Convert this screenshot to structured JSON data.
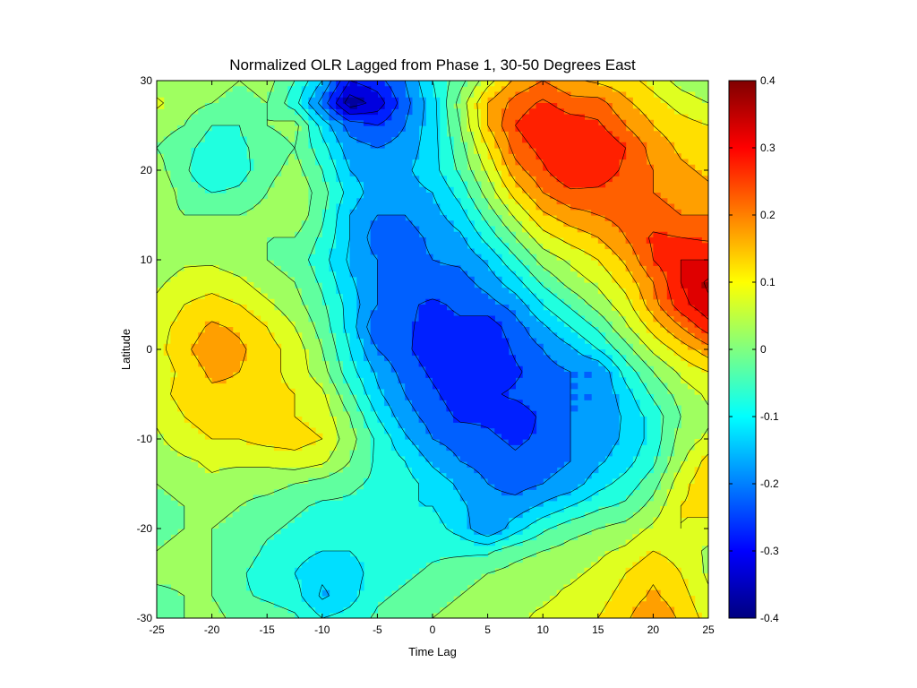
{
  "chart_data": {
    "type": "heatmap",
    "title": "Normalized OLR Lagged from Phase 1, 30-50 Degrees East",
    "xlabel": "Time Lag",
    "ylabel": "Latitude",
    "xlim": [
      -25,
      25
    ],
    "ylim": [
      -30,
      30
    ],
    "x_ticks": [
      -25,
      -20,
      -15,
      -10,
      -5,
      0,
      5,
      10,
      15,
      20,
      25
    ],
    "y_ticks": [
      -30,
      -20,
      -10,
      0,
      10,
      20,
      30
    ],
    "colorbar": {
      "colormap": "jet",
      "range": [
        -0.4,
        0.4
      ],
      "ticks": [
        -0.4,
        -0.3,
        -0.2,
        -0.1,
        0,
        0.1,
        0.2,
        0.3,
        0.4
      ]
    },
    "contour_interval": 0.05,
    "x": [
      -25,
      -22.5,
      -20,
      -17.5,
      -15,
      -12.5,
      -10,
      -7.5,
      -5,
      -2.5,
      0,
      2.5,
      5,
      7.5,
      10,
      12.5,
      15,
      17.5,
      20,
      22.5,
      25
    ],
    "y": [
      30,
      27.5,
      25,
      22.5,
      20,
      17.5,
      15,
      12.5,
      10,
      7.5,
      5,
      2.5,
      0,
      -2.5,
      -5,
      -7.5,
      -10,
      -12.5,
      -15,
      -17.5,
      -20,
      -22.5,
      -25,
      -27.5,
      -30
    ],
    "z": [
      [
        0.02,
        0.04,
        0.02,
        0.0,
        0.02,
        -0.05,
        -0.15,
        -0.3,
        -0.27,
        -0.2,
        -0.1,
        -0.02,
        0.08,
        0.16,
        0.2,
        0.16,
        0.14,
        0.12,
        0.08,
        0.03,
        0.0
      ],
      [
        0.06,
        0.02,
        0.0,
        -0.02,
        0.0,
        -0.08,
        -0.22,
        -0.38,
        -0.33,
        -0.22,
        -0.12,
        0.02,
        0.15,
        0.22,
        0.26,
        0.22,
        0.22,
        0.16,
        0.12,
        0.08,
        0.05
      ],
      [
        0.02,
        0.0,
        -0.05,
        -0.05,
        0.0,
        0.02,
        -0.12,
        -0.22,
        -0.25,
        -0.2,
        -0.12,
        0.0,
        0.15,
        0.25,
        0.3,
        0.28,
        0.26,
        0.2,
        0.15,
        0.12,
        0.1
      ],
      [
        0.0,
        -0.03,
        -0.08,
        -0.06,
        -0.03,
        0.0,
        -0.08,
        -0.18,
        -0.2,
        -0.18,
        -0.12,
        -0.02,
        0.1,
        0.22,
        0.27,
        0.28,
        0.3,
        0.25,
        0.18,
        0.14,
        0.12
      ],
      [
        0.02,
        -0.04,
        -0.1,
        -0.07,
        -0.02,
        0.02,
        -0.05,
        -0.15,
        -0.18,
        -0.16,
        -0.12,
        -0.04,
        0.06,
        0.18,
        0.24,
        0.3,
        0.28,
        0.24,
        0.2,
        0.16,
        0.14
      ],
      [
        0.04,
        -0.02,
        -0.05,
        -0.04,
        0.0,
        0.05,
        -0.03,
        -0.12,
        -0.18,
        -0.17,
        -0.15,
        -0.08,
        0.02,
        0.12,
        0.2,
        0.24,
        0.24,
        0.22,
        0.2,
        0.18,
        0.16
      ],
      [
        0.02,
        0.0,
        0.0,
        0.0,
        0.02,
        0.04,
        -0.04,
        -0.15,
        -0.2,
        -0.2,
        -0.17,
        -0.12,
        -0.03,
        0.06,
        0.14,
        0.18,
        0.2,
        0.22,
        0.22,
        0.2,
        0.2
      ],
      [
        0.0,
        0.0,
        0.02,
        0.02,
        0.0,
        0.0,
        -0.06,
        -0.15,
        -0.23,
        -0.22,
        -0.19,
        -0.16,
        -0.08,
        0.0,
        0.08,
        0.12,
        0.15,
        0.2,
        0.26,
        0.25,
        0.24
      ],
      [
        0.02,
        0.04,
        0.04,
        0.02,
        0.0,
        -0.02,
        -0.08,
        -0.16,
        -0.2,
        -0.22,
        -0.2,
        -0.19,
        -0.14,
        -0.06,
        0.02,
        0.06,
        0.1,
        0.16,
        0.25,
        0.3,
        0.3
      ],
      [
        0.04,
        0.07,
        0.08,
        0.06,
        0.02,
        0.0,
        -0.06,
        -0.14,
        -0.2,
        -0.22,
        -0.22,
        -0.22,
        -0.18,
        -0.12,
        -0.04,
        0.02,
        0.06,
        0.12,
        0.2,
        0.3,
        0.36
      ],
      [
        0.06,
        0.1,
        0.12,
        0.1,
        0.06,
        0.02,
        -0.04,
        -0.12,
        -0.2,
        -0.24,
        -0.26,
        -0.24,
        -0.22,
        -0.18,
        -0.1,
        -0.04,
        0.02,
        0.08,
        0.18,
        0.28,
        0.34
      ],
      [
        0.08,
        0.12,
        0.16,
        0.14,
        0.1,
        0.05,
        -0.02,
        -0.12,
        -0.25,
        -0.24,
        -0.27,
        -0.26,
        -0.28,
        -0.22,
        -0.16,
        -0.1,
        -0.04,
        0.04,
        0.12,
        0.2,
        0.28
      ],
      [
        0.08,
        0.14,
        0.18,
        0.16,
        0.12,
        0.08,
        0.0,
        -0.1,
        -0.2,
        -0.24,
        -0.28,
        -0.28,
        -0.3,
        -0.24,
        -0.2,
        -0.16,
        -0.1,
        -0.02,
        0.06,
        0.12,
        0.18
      ],
      [
        0.06,
        0.12,
        0.16,
        0.15,
        0.12,
        0.08,
        0.02,
        -0.08,
        -0.16,
        -0.22,
        -0.26,
        -0.28,
        -0.3,
        -0.26,
        -0.22,
        -0.2,
        -0.2,
        -0.08,
        0.0,
        0.06,
        0.1
      ],
      [
        0.08,
        0.12,
        0.14,
        0.14,
        0.12,
        0.1,
        0.06,
        -0.04,
        -0.14,
        -0.2,
        -0.24,
        -0.28,
        -0.26,
        -0.24,
        -0.22,
        -0.2,
        -0.2,
        -0.12,
        -0.04,
        0.02,
        0.06
      ],
      [
        0.06,
        0.1,
        0.12,
        0.12,
        0.1,
        0.1,
        0.08,
        0.0,
        -0.1,
        -0.18,
        -0.22,
        -0.26,
        -0.26,
        -0.28,
        -0.24,
        -0.2,
        -0.2,
        -0.14,
        -0.08,
        0.0,
        0.04
      ],
      [
        0.04,
        0.08,
        0.1,
        0.1,
        0.12,
        0.12,
        0.1,
        0.02,
        -0.06,
        -0.14,
        -0.2,
        -0.22,
        -0.24,
        -0.26,
        -0.24,
        -0.2,
        -0.18,
        -0.14,
        -0.08,
        0.02,
        0.06
      ],
      [
        0.02,
        0.04,
        0.06,
        0.06,
        0.06,
        0.08,
        0.06,
        0.0,
        -0.06,
        -0.1,
        -0.16,
        -0.2,
        -0.22,
        -0.24,
        -0.22,
        -0.2,
        -0.16,
        -0.12,
        -0.06,
        0.04,
        0.12
      ],
      [
        0.0,
        0.02,
        0.04,
        0.02,
        0.02,
        0.0,
        -0.02,
        -0.04,
        -0.06,
        -0.08,
        -0.12,
        -0.16,
        -0.2,
        -0.22,
        -0.2,
        -0.18,
        -0.12,
        -0.08,
        -0.02,
        0.08,
        0.14
      ],
      [
        -0.02,
        0.0,
        0.02,
        0.0,
        -0.02,
        -0.04,
        -0.06,
        -0.06,
        -0.08,
        -0.1,
        -0.1,
        -0.14,
        -0.18,
        -0.18,
        -0.14,
        -0.1,
        -0.06,
        -0.04,
        0.02,
        0.1,
        0.12
      ],
      [
        -0.02,
        0.0,
        0.0,
        -0.02,
        -0.04,
        -0.06,
        -0.08,
        -0.08,
        -0.08,
        -0.1,
        -0.08,
        -0.12,
        -0.2,
        -0.12,
        -0.06,
        -0.02,
        0.0,
        0.02,
        0.06,
        0.1,
        0.08
      ],
      [
        0.0,
        0.02,
        0.0,
        -0.02,
        -0.06,
        -0.08,
        -0.1,
        -0.1,
        -0.08,
        -0.08,
        -0.06,
        -0.06,
        -0.06,
        -0.02,
        0.0,
        0.02,
        0.04,
        0.06,
        0.1,
        0.08,
        0.04
      ],
      [
        0.02,
        0.02,
        0.0,
        -0.04,
        -0.08,
        -0.1,
        -0.14,
        -0.12,
        -0.08,
        -0.06,
        -0.04,
        -0.02,
        0.0,
        0.02,
        0.04,
        0.04,
        0.06,
        0.1,
        0.14,
        0.1,
        0.04
      ],
      [
        -0.02,
        0.0,
        0.0,
        -0.04,
        -0.06,
        -0.08,
        -0.16,
        -0.12,
        -0.06,
        -0.04,
        -0.02,
        0.0,
        0.02,
        0.04,
        0.04,
        0.06,
        0.08,
        0.12,
        0.16,
        0.12,
        0.06
      ],
      [
        -0.04,
        0.0,
        0.02,
        -0.02,
        -0.02,
        -0.04,
        -0.1,
        -0.08,
        -0.04,
        -0.02,
        0.0,
        0.02,
        0.04,
        0.04,
        0.06,
        0.08,
        0.1,
        0.14,
        0.2,
        0.14,
        0.08
      ]
    ]
  }
}
